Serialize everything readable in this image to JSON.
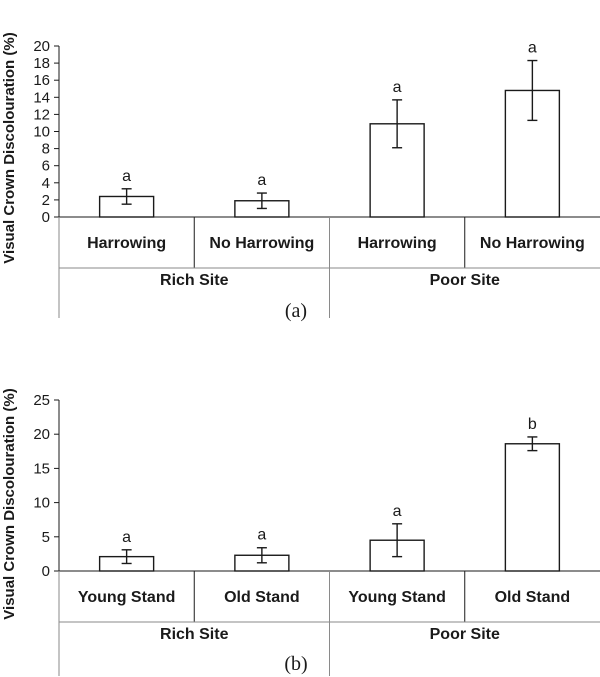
{
  "chart_data": [
    {
      "type": "bar",
      "panel_label": "(a)",
      "ylabel": "Visual Crown Discolouration (%)",
      "ylim": [
        0,
        20
      ],
      "yticks": [
        0,
        2,
        4,
        6,
        8,
        10,
        12,
        14,
        16,
        18,
        20
      ],
      "groups": [
        "Rich Site",
        "Poor Site"
      ],
      "categories": [
        "Harrowing",
        "No Harrowing",
        "Harrowing",
        "No Harrowing"
      ],
      "values": [
        2.4,
        1.9,
        10.9,
        14.8
      ],
      "errors": [
        0.9,
        0.9,
        2.8,
        3.5
      ],
      "significance": [
        "a",
        "a",
        "a",
        "a"
      ]
    },
    {
      "type": "bar",
      "panel_label": "(b)",
      "ylabel": "Visual Crown Discolouration (%)",
      "ylim": [
        0,
        25
      ],
      "yticks": [
        0,
        5,
        10,
        15,
        20,
        25
      ],
      "groups": [
        "Rich Site",
        "Poor Site"
      ],
      "categories": [
        "Young Stand",
        "Old Stand",
        "Young Stand",
        "Old Stand"
      ],
      "values": [
        2.1,
        2.3,
        4.5,
        18.6
      ],
      "errors": [
        1.0,
        1.1,
        2.4,
        1.0
      ],
      "significance": [
        "a",
        "a",
        "a",
        "b"
      ]
    }
  ]
}
